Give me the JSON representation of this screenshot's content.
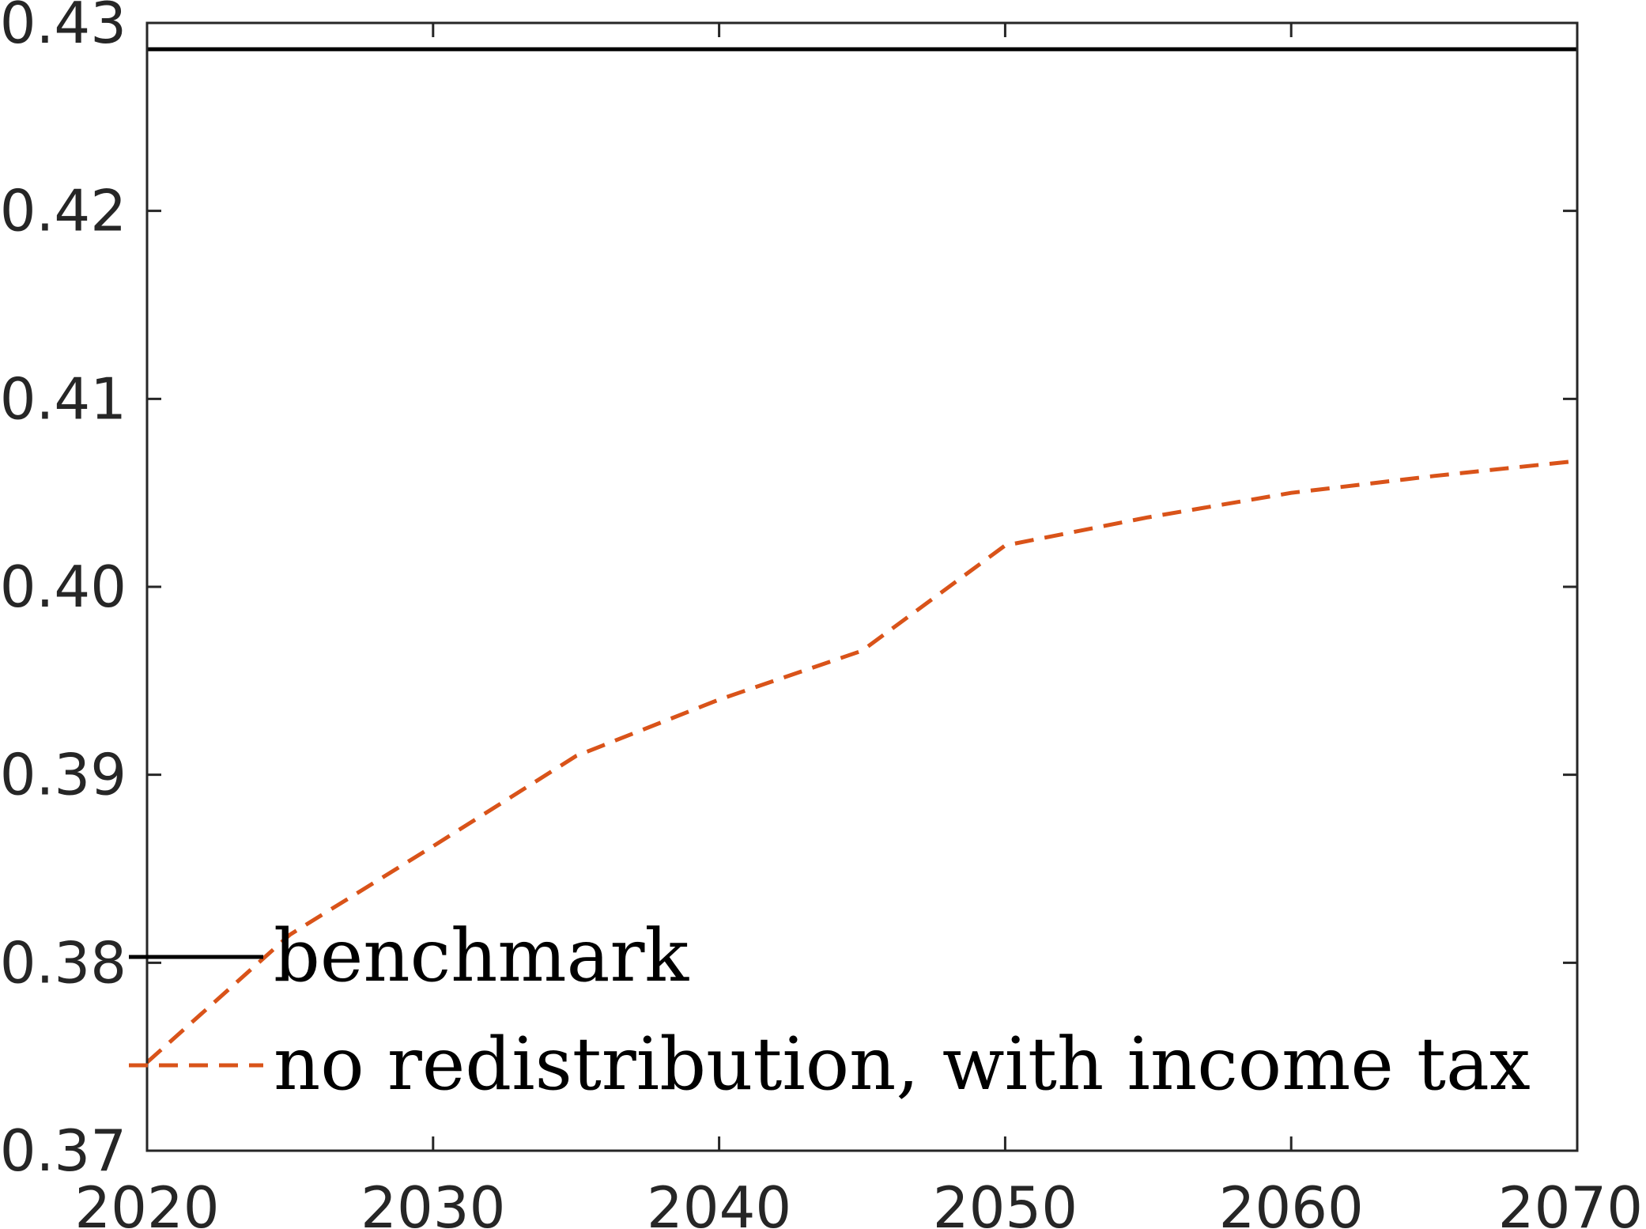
{
  "chart_data": {
    "type": "line",
    "title": "",
    "xlabel": "",
    "ylabel": "",
    "xlim": [
      2020,
      2070
    ],
    "ylim": [
      0.37,
      0.43
    ],
    "x_ticks": [
      2020,
      2030,
      2040,
      2050,
      2060,
      2070
    ],
    "y_ticks": [
      0.37,
      0.38,
      0.39,
      0.4,
      0.41,
      0.42,
      0.43
    ],
    "x_tick_labels": [
      "2020",
      "2030",
      "2040",
      "2050",
      "2060",
      "2070"
    ],
    "y_tick_labels": [
      "0.37",
      "0.38",
      "0.39",
      "0.40",
      "0.41",
      "0.42",
      "0.43"
    ],
    "grid": false,
    "legend_position": "bottom-left",
    "series": [
      {
        "name": "benchmark",
        "color": "#000000",
        "line_style": "solid",
        "x": [
          2020,
          2070
        ],
        "y": [
          0.4286,
          0.4286
        ]
      },
      {
        "name": "no redistribution, with income tax",
        "color": "#D95319",
        "line_style": "dashed",
        "x": [
          2020,
          2025,
          2030,
          2035,
          2040,
          2045,
          2050,
          2055,
          2060,
          2065,
          2070
        ],
        "y": [
          0.3747,
          0.3815,
          0.3862,
          0.391,
          0.394,
          0.3966,
          0.4022,
          0.4037,
          0.405,
          0.4059,
          0.4067
        ]
      }
    ]
  }
}
